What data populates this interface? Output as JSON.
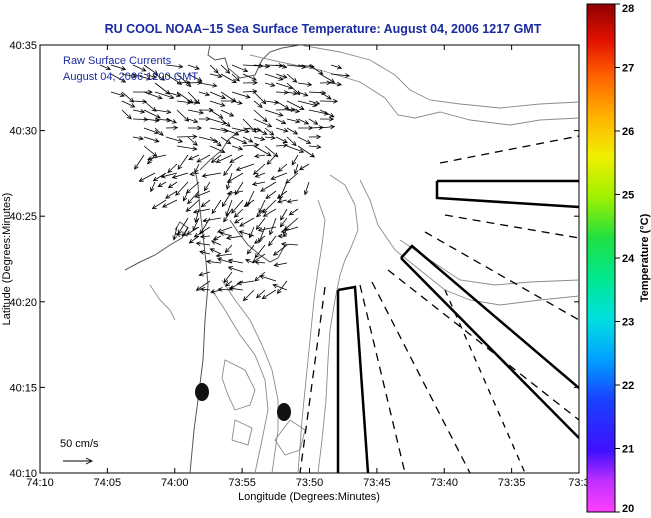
{
  "map": {
    "title": "RU COOL  NOAA–15  Sea Surface Temperature:  August 04, 2006 1217 GMT",
    "overlay_title": "Raw Surface Currents",
    "overlay_date": "August 04, 2006 1200 GMT",
    "scale_label": "50 cm/s",
    "x_axis_label": "Longitude (Degrees:Minutes)",
    "y_axis_label": "Latitude (Degrees:Minutes)",
    "x_ticks": [
      "74:10",
      "74:05",
      "74:00",
      "73:55",
      "73:50",
      "73:45",
      "73:40",
      "73:35",
      "73:3"
    ],
    "y_ticks": [
      "40:35",
      "40:30",
      "40:25",
      "40:20",
      "40:15",
      "40:10"
    ],
    "colors": {
      "title": "#1a2aa0",
      "frame": "#000000",
      "contour": "#8a8a8a",
      "vector": "#000000"
    }
  },
  "colorbar": {
    "label": "Temperature (°C)",
    "ticks": [
      "28",
      "27",
      "26",
      "25",
      "24",
      "23",
      "22",
      "21",
      "20"
    ],
    "range": [
      20,
      28
    ]
  }
}
